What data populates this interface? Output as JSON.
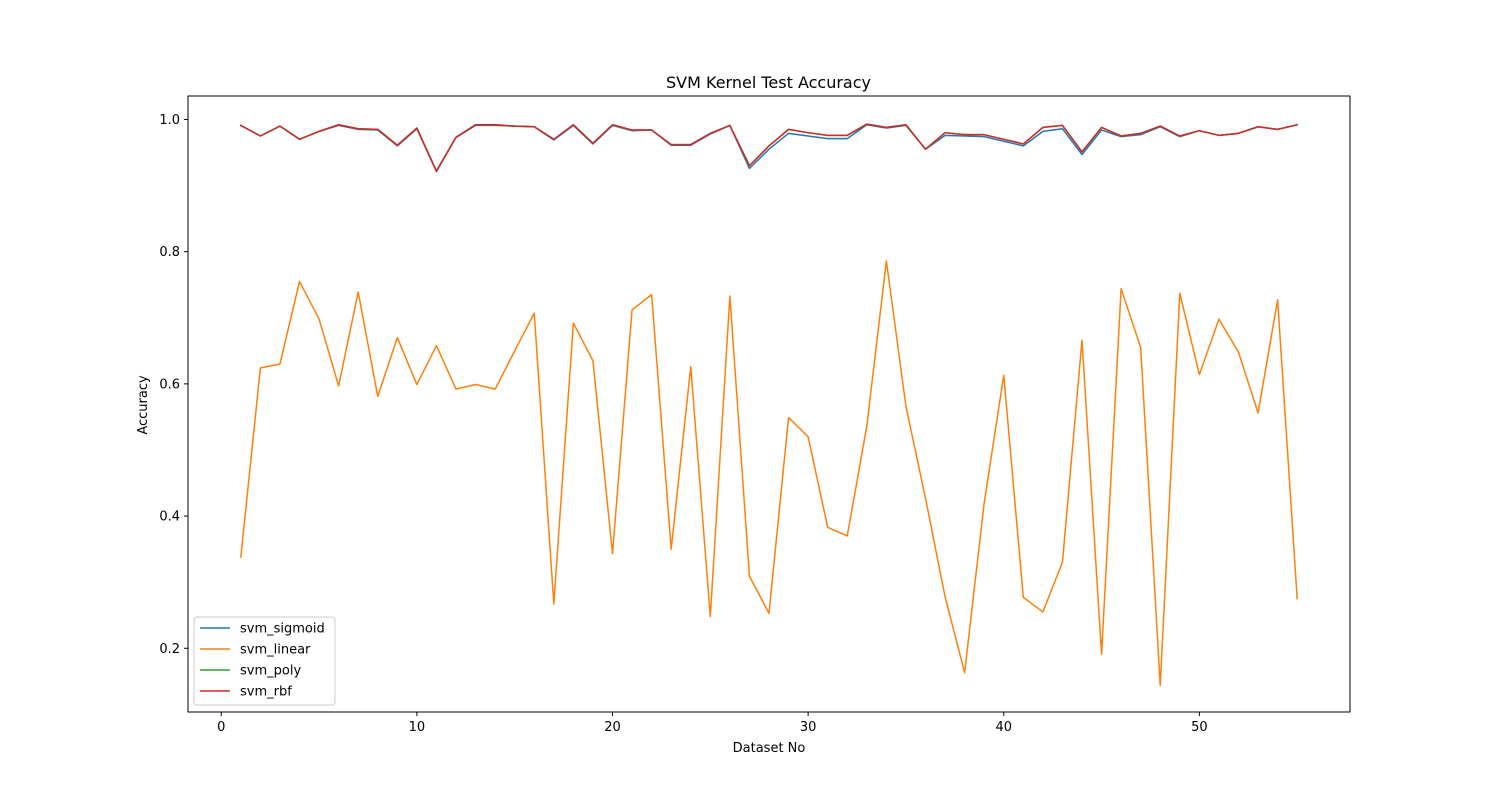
{
  "chart_data": {
    "type": "line",
    "title": "SVM Kernel Test Accuracy",
    "xlabel": "Dataset No",
    "ylabel": "Accuracy",
    "xlim": [
      -1.7,
      57.7
    ],
    "ylim": [
      0.1036,
      1.0355
    ],
    "xticks": [
      0,
      10,
      20,
      30,
      40,
      50
    ],
    "yticks": [
      0.2,
      0.4,
      0.6,
      0.8,
      1.0
    ],
    "xtick_labels": [
      "0",
      "10",
      "20",
      "30",
      "40",
      "50"
    ],
    "ytick_labels": [
      "0.2",
      "0.4",
      "0.6",
      "0.8",
      "1.0"
    ],
    "grid": false,
    "legend_position": "lower-left",
    "x": [
      1,
      2,
      3,
      4,
      5,
      6,
      7,
      8,
      9,
      10,
      11,
      12,
      13,
      14,
      15,
      16,
      17,
      18,
      19,
      20,
      21,
      22,
      23,
      24,
      25,
      26,
      27,
      28,
      29,
      30,
      31,
      32,
      33,
      34,
      35,
      36,
      37,
      38,
      39,
      40,
      41,
      42,
      43,
      44,
      45,
      46,
      47,
      48,
      49,
      50,
      51,
      52,
      53,
      54,
      55
    ],
    "series": [
      {
        "name": "svm_sigmoid",
        "color": "#1f77b4",
        "values": [
          0.991,
          0.975,
          0.99,
          0.97,
          0.982,
          0.991,
          0.985,
          0.984,
          0.96,
          0.986,
          0.921,
          0.973,
          0.991,
          0.991,
          0.99,
          0.989,
          0.969,
          0.991,
          0.963,
          0.991,
          0.983,
          0.984,
          0.961,
          0.961,
          0.978,
          0.991,
          0.926,
          0.955,
          0.979,
          0.975,
          0.971,
          0.971,
          0.992,
          0.987,
          0.991,
          0.955,
          0.976,
          0.975,
          0.974,
          0.967,
          0.96,
          0.982,
          0.986,
          0.947,
          0.984,
          0.974,
          0.977,
          0.989,
          0.974,
          0.983,
          0.976,
          0.979,
          0.989,
          0.985,
          0.992
        ]
      },
      {
        "name": "svm_linear",
        "color": "#ff7f0e",
        "values": [
          0.338,
          0.624,
          0.63,
          0.755,
          0.698,
          0.597,
          0.739,
          0.581,
          0.67,
          0.599,
          0.658,
          0.592,
          0.599,
          0.592,
          0.65,
          0.707,
          0.267,
          0.692,
          0.635,
          0.343,
          0.712,
          0.735,
          0.35,
          0.626,
          0.248,
          0.733,
          0.309,
          0.253,
          0.549,
          0.52,
          0.383,
          0.37,
          0.536,
          0.786,
          0.566,
          0.427,
          0.278,
          0.163,
          0.42,
          0.613,
          0.277,
          0.255,
          0.33,
          0.666,
          0.191,
          0.744,
          0.655,
          0.144,
          0.737,
          0.614,
          0.698,
          0.648,
          0.556,
          0.727,
          0.275
        ]
      },
      {
        "name": "svm_poly",
        "color": "#2ca02c",
        "values": [
          0.991,
          0.975,
          0.99,
          0.97,
          0.982,
          0.992,
          0.986,
          0.985,
          0.961,
          0.987,
          0.922,
          0.973,
          0.992,
          0.992,
          0.99,
          0.989,
          0.97,
          0.992,
          0.964,
          0.992,
          0.984,
          0.984,
          0.962,
          0.962,
          0.979,
          0.991,
          0.93,
          0.96,
          0.985,
          0.98,
          0.976,
          0.976,
          0.993,
          0.988,
          0.992,
          0.955,
          0.98,
          0.977,
          0.977,
          0.97,
          0.963,
          0.988,
          0.991,
          0.951,
          0.988,
          0.975,
          0.979,
          0.99,
          0.975,
          0.983,
          0.976,
          0.979,
          0.989,
          0.985,
          0.992
        ]
      },
      {
        "name": "svm_rbf",
        "color": "#d62728",
        "values": [
          0.991,
          0.975,
          0.99,
          0.97,
          0.982,
          0.992,
          0.986,
          0.985,
          0.961,
          0.987,
          0.922,
          0.973,
          0.992,
          0.992,
          0.99,
          0.989,
          0.97,
          0.992,
          0.964,
          0.992,
          0.984,
          0.984,
          0.962,
          0.962,
          0.979,
          0.991,
          0.93,
          0.96,
          0.985,
          0.98,
          0.976,
          0.976,
          0.993,
          0.988,
          0.992,
          0.955,
          0.98,
          0.977,
          0.977,
          0.97,
          0.963,
          0.988,
          0.991,
          0.951,
          0.988,
          0.975,
          0.979,
          0.99,
          0.975,
          0.983,
          0.976,
          0.979,
          0.989,
          0.985,
          0.992
        ]
      }
    ]
  }
}
